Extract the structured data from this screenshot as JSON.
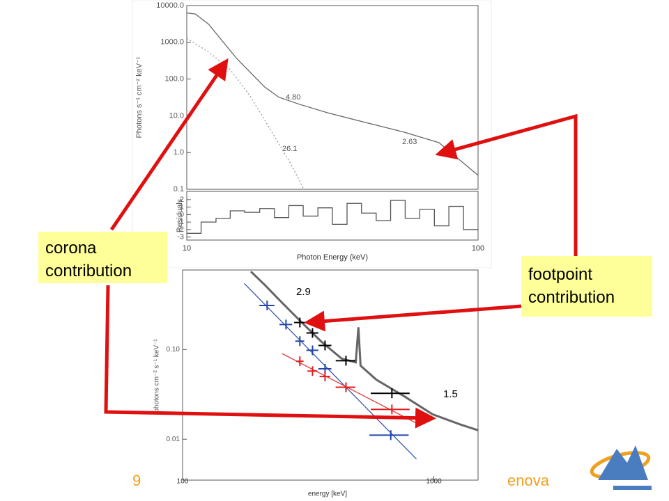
{
  "chart_data": [
    {
      "type": "line",
      "xlog": true,
      "ylog": true,
      "ylabel": "Photons s⁻¹ cm⁻² keV⁻¹",
      "xlim": [
        10,
        100
      ],
      "ylim": [
        0.1,
        10000
      ],
      "yticks": [
        {
          "value": 0.1,
          "label": "0.1"
        },
        {
          "value": 1,
          "label": "1.0"
        },
        {
          "value": 10,
          "label": "10.0"
        },
        {
          "value": 100,
          "label": "100.0"
        },
        {
          "value": 1000,
          "label": "1000.0"
        },
        {
          "value": 10000,
          "label": "10000.0"
        }
      ],
      "annotations": [
        "4.80",
        "26.1",
        "2.63"
      ],
      "series": [
        {
          "color": "#666666",
          "style": "solid",
          "x": [
            10,
            10.7,
            11.9,
            13.3,
            14.9,
            16.6,
            18.5,
            20.7,
            24.4,
            30.4,
            40.1,
            55.7,
            73.4,
            100
          ],
          "values": [
            6300,
            5900,
            3080,
            1040,
            350,
            146,
            61,
            32,
            20.5,
            12.1,
            6.9,
            3.6,
            1.86,
            0.24
          ]
        },
        {
          "color": "#999999",
          "style": "dotted",
          "x": [
            10,
            11.9,
            14.1,
            16.6,
            19.6,
            23.1,
            25.2
          ],
          "values": [
            1290,
            540,
            181,
            32,
            3.6,
            0.4,
            0.1
          ]
        }
      ]
    },
    {
      "type": "step",
      "xlog": true,
      "ylabel": "Residuals",
      "xlabel": "Photon Energy (keV)",
      "xlim": [
        10,
        100
      ],
      "ylim": [
        -3.4,
        3.1
      ],
      "xticks": [
        10,
        100
      ],
      "yticks": [
        -3,
        -2,
        -1,
        0,
        1,
        2
      ],
      "series": [
        {
          "color": "#555555",
          "style": "solid",
          "x": [
            10,
            11.2,
            12.6,
            14.1,
            15.8,
            17.8,
            20,
            22.4,
            25.1,
            28.2,
            31.6,
            35.5,
            39.8,
            44.7,
            50.1,
            56.2,
            63.1,
            70.8,
            79.4,
            89.1
          ],
          "values": [
            -2.5,
            -1,
            -0.5,
            0.5,
            0.3,
            0.8,
            -0.4,
            1.2,
            -0.2,
            0.9,
            -1.3,
            1.5,
            0.2,
            -0.8,
            1.9,
            -0.5,
            0.7,
            -1.5,
            1.1,
            -2
          ]
        }
      ]
    },
    {
      "type": "errorbar",
      "xlog": true,
      "ylog": true,
      "ylabel": "photons cm⁻² s⁻¹ keV⁻¹",
      "xlabel": "energy [keV]",
      "xlim": [
        100,
        1500
      ],
      "ylim": [
        0.0035,
        0.77
      ],
      "xticks": [
        100,
        1000
      ],
      "yticks": [
        0.01,
        {
          "value": 0.1,
          "label": "0.10"
        }
      ],
      "annotations": [
        "2.9",
        "1.5"
      ],
      "series": [
        {
          "color": "#666666",
          "style": "thick",
          "x": [
            187,
            213,
            242,
            293,
            355,
            430,
            489,
            501,
            511,
            591,
            764,
            987,
            1275,
            1500
          ],
          "values": [
            0.74,
            0.52,
            0.36,
            0.21,
            0.124,
            0.079,
            0.072,
            0.177,
            0.066,
            0.046,
            0.03,
            0.019,
            0.0146,
            0.0126
          ]
        },
        {
          "color": "#3355aa",
          "style": "solid",
          "x": [
            176,
            853
          ],
          "values": [
            0.545,
            0.006
          ]
        },
        {
          "color": "#e03030",
          "style": "solid",
          "x": [
            249,
            853
          ],
          "values": [
            0.09,
            0.0151
          ]
        }
      ],
      "points": [
        {
          "color": "#000000",
          "x": [
            293,
            329,
            369,
            447,
            681
          ],
          "values": [
            0.2,
            0.153,
            0.111,
            0.075,
            0.0325
          ],
          "xerr": [
            15,
            18,
            22,
            40,
            120
          ]
        },
        {
          "color": "#2244aa",
          "x": [
            217,
            258,
            293,
            329,
            369,
            447,
            674
          ],
          "values": [
            0.31,
            0.19,
            0.124,
            0.098,
            0.061,
            0.038,
            0.0111
          ],
          "xerr": [
            15,
            15,
            12,
            18,
            22,
            40,
            120
          ]
        },
        {
          "color": "#e02020",
          "x": [
            293,
            329,
            369,
            447,
            681
          ],
          "values": [
            0.074,
            0.0575,
            0.05,
            0.038,
            0.0215
          ],
          "xerr": [
            10,
            15,
            18,
            40,
            120
          ]
        }
      ]
    }
  ],
  "callouts": {
    "corona": [
      "corona",
      "contribution"
    ],
    "footpoint": [
      "footpoint",
      "contribution"
    ]
  },
  "footer": {
    "page": "9",
    "right": "enova"
  }
}
